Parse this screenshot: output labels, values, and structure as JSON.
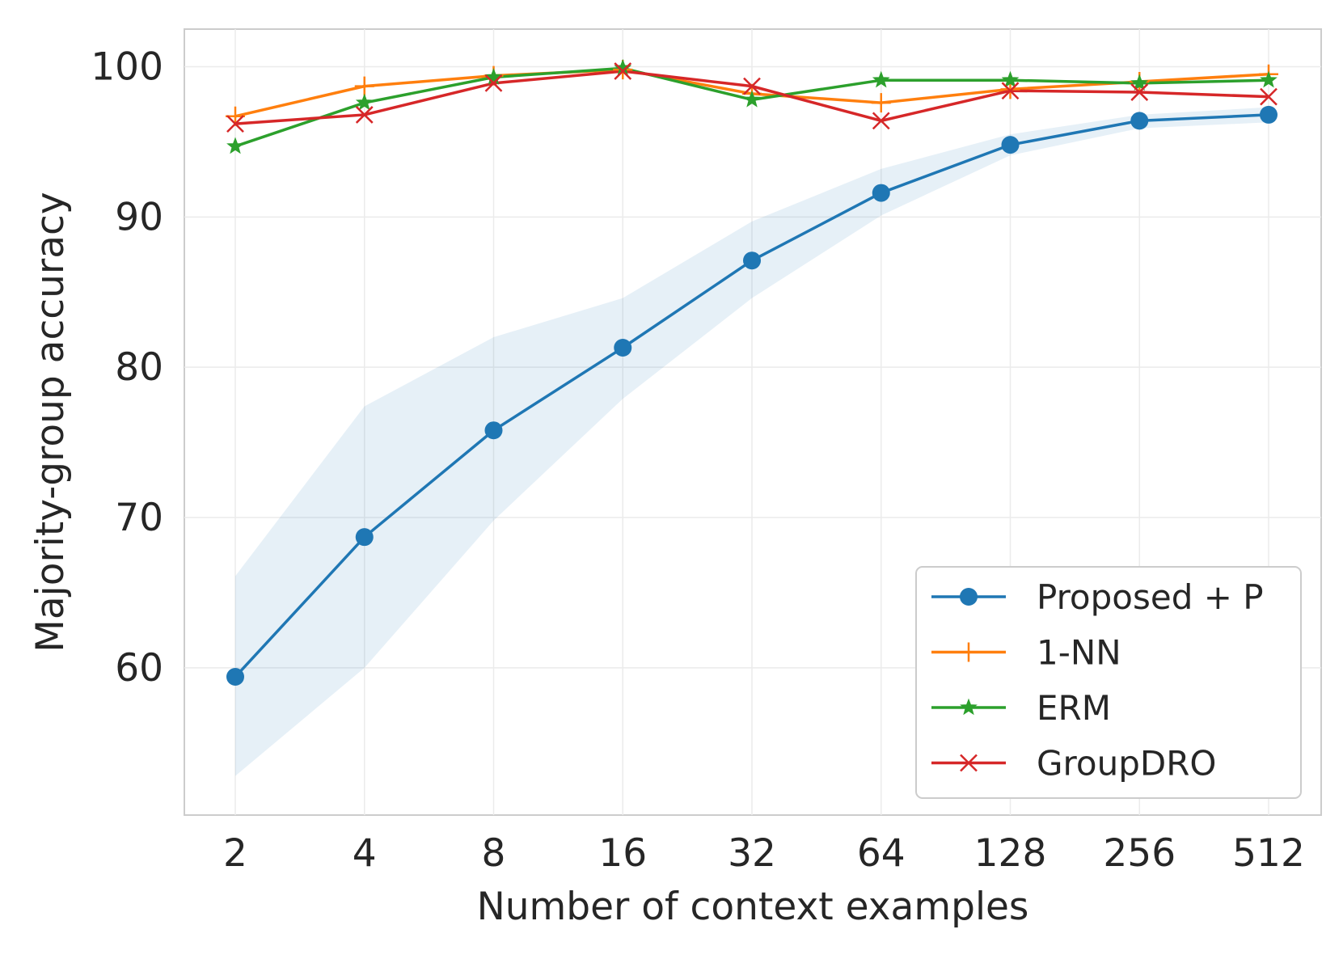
{
  "chart_data": {
    "type": "line",
    "title": "",
    "xlabel": "Number of context examples",
    "ylabel": "Majority-group accuracy",
    "categories": [
      "2",
      "4",
      "8",
      "16",
      "32",
      "64",
      "128",
      "256",
      "512"
    ],
    "yticks": [
      "60",
      "70",
      "80",
      "90",
      "100"
    ],
    "ylim": [
      50.2,
      102.5
    ],
    "grid": true,
    "legend_position": "lower-right",
    "series": [
      {
        "name": "Proposed + P",
        "color": "#1f77b4",
        "marker": "circle",
        "values": [
          59.4,
          68.7,
          75.8,
          81.3,
          87.1,
          91.6,
          94.8,
          96.4,
          96.8
        ],
        "band_lower": [
          52.8,
          60.0,
          69.8,
          77.9,
          84.6,
          90.1,
          94.1,
          95.9,
          96.3
        ],
        "band_upper": [
          66.1,
          77.4,
          82.0,
          84.6,
          89.7,
          93.2,
          95.5,
          96.8,
          97.3
        ]
      },
      {
        "name": "1-NN",
        "color": "#ff7f0e",
        "marker": "plus",
        "values": [
          96.7,
          98.7,
          99.4,
          99.8,
          98.2,
          97.6,
          98.5,
          99.0,
          99.5
        ]
      },
      {
        "name": "ERM",
        "color": "#2ca02c",
        "marker": "star",
        "values": [
          94.7,
          97.6,
          99.3,
          99.9,
          97.8,
          99.1,
          99.1,
          98.9,
          99.1
        ]
      },
      {
        "name": "GroupDRO",
        "color": "#d62728",
        "marker": "x",
        "values": [
          96.2,
          96.8,
          98.9,
          99.7,
          98.7,
          96.4,
          98.4,
          98.3,
          98.0
        ]
      }
    ]
  }
}
